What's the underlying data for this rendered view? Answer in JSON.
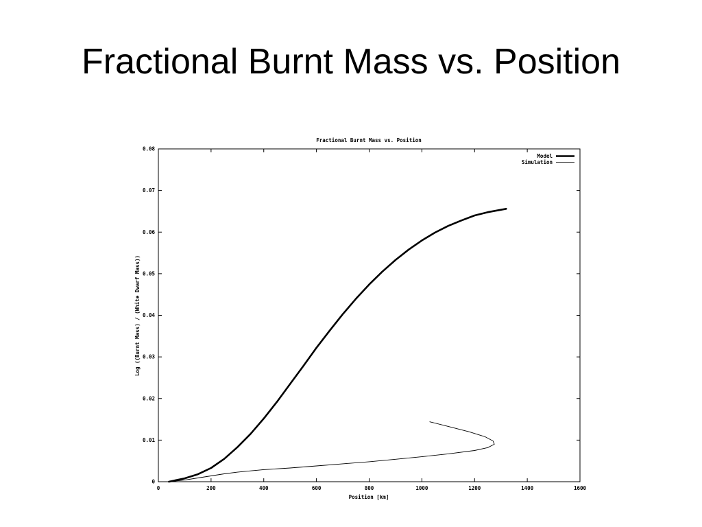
{
  "slide": {
    "title": "Fractional Burnt Mass vs. Position"
  },
  "chart_data": {
    "type": "line",
    "title": "Fractional Burnt Mass vs. Position",
    "xlabel": "Position [km]",
    "ylabel": "Log ((Burnt Mass) / (White Dwarf Mass))",
    "xlim": [
      0,
      1600
    ],
    "ylim": [
      0,
      0.08
    ],
    "xticks": [
      0,
      200,
      400,
      600,
      800,
      1000,
      1200,
      1400,
      1600
    ],
    "xtick_labels": [
      "0",
      "200",
      "400",
      "600",
      "800",
      "1000",
      "1200",
      "1400",
      "1600"
    ],
    "yticks": [
      0,
      0.01,
      0.02,
      0.03,
      0.04,
      0.05,
      0.06,
      0.07,
      0.08
    ],
    "ytick_labels": [
      "0",
      "0.01",
      "0.02",
      "0.03",
      "0.04",
      "0.05",
      "0.06",
      "0.07",
      "0.08"
    ],
    "grid": false,
    "legend_position": "top-right",
    "series": [
      {
        "name": "Model",
        "color": "#000000",
        "style": "thick",
        "x": [
          40,
          100,
          150,
          200,
          250,
          300,
          350,
          400,
          450,
          500,
          550,
          600,
          650,
          700,
          750,
          800,
          850,
          900,
          950,
          1000,
          1050,
          1100,
          1150,
          1200,
          1250,
          1320
        ],
        "y": [
          0.0,
          0.0008,
          0.0018,
          0.0033,
          0.0055,
          0.0083,
          0.0115,
          0.0152,
          0.0192,
          0.0235,
          0.0278,
          0.0322,
          0.0363,
          0.0403,
          0.044,
          0.0474,
          0.0505,
          0.0533,
          0.0558,
          0.058,
          0.0599,
          0.0615,
          0.0628,
          0.064,
          0.0648,
          0.0656
        ]
      },
      {
        "name": "Simulation",
        "color": "#000000",
        "style": "thin",
        "x": [
          40,
          100,
          150,
          200,
          250,
          300,
          350,
          400,
          500,
          600,
          700,
          800,
          900,
          1000,
          1100,
          1200,
          1250,
          1275,
          1270,
          1240,
          1180,
          1100,
          1030
        ],
        "y": [
          0.0,
          0.0004,
          0.0009,
          0.0014,
          0.0019,
          0.0023,
          0.0026,
          0.0029,
          0.0033,
          0.0038,
          0.0043,
          0.0048,
          0.0054,
          0.006,
          0.0067,
          0.0075,
          0.0082,
          0.009,
          0.0098,
          0.0108,
          0.012,
          0.0133,
          0.0144
        ]
      }
    ]
  }
}
